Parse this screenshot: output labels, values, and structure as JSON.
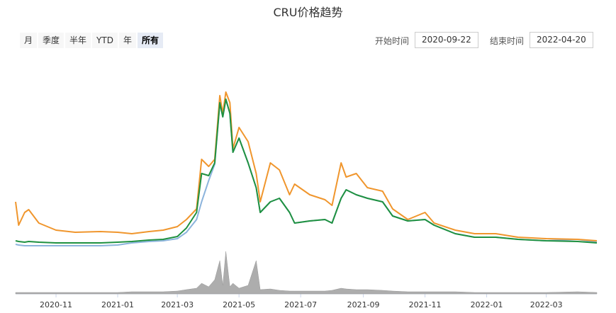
{
  "chart_data": {
    "type": "line",
    "title": "CRU价格趋势",
    "range_buttons": [
      "月",
      "季度",
      "半年",
      "YTD",
      "年",
      "所有"
    ],
    "selected_button": 5,
    "start_label": "开始时间",
    "start_date": "2020-09-22",
    "end_label": "结束时间",
    "end_date": "2022-04-20",
    "x": [
      "2020-09-22",
      "2020-09-25",
      "2020-10-01",
      "2020-10-05",
      "2020-10-15",
      "2020-11-01",
      "2020-11-20",
      "2020-12-15",
      "2021-01-01",
      "2021-01-15",
      "2021-02-01",
      "2021-02-15",
      "2021-03-01",
      "2021-03-10",
      "2021-03-20",
      "2021-03-25",
      "2021-04-01",
      "2021-04-07",
      "2021-04-12",
      "2021-04-15",
      "2021-04-18",
      "2021-04-22",
      "2021-04-25",
      "2021-05-01",
      "2021-05-10",
      "2021-05-18",
      "2021-05-22",
      "2021-06-01",
      "2021-06-10",
      "2021-06-20",
      "2021-06-25",
      "2021-07-10",
      "2021-07-25",
      "2021-08-01",
      "2021-08-10",
      "2021-08-15",
      "2021-08-25",
      "2021-09-05",
      "2021-09-20",
      "2021-09-30",
      "2021-10-15",
      "2021-11-01",
      "2021-11-10",
      "2021-12-01",
      "2021-12-20",
      "2022-01-10",
      "2022-02-01",
      "2022-03-01",
      "2022-04-01",
      "2022-04-20"
    ],
    "series": [
      {
        "color": "#8cb4dc",
        "values": [
          5,
          4,
          3,
          3,
          3,
          3,
          3,
          3,
          4,
          7,
          9,
          10,
          13,
          22,
          40,
          65,
          95,
          118,
          204,
          185,
          209,
          190,
          135,
          155,
          120,
          85,
          50,
          65,
          70,
          50,
          35,
          38,
          40,
          35,
          70,
          82,
          75,
          70,
          65,
          45,
          38,
          40,
          32,
          20,
          15,
          15,
          12,
          10,
          12,
          8
        ]
      },
      {
        "color": "#f0962d",
        "values": [
          65,
          32,
          50,
          54,
          35,
          25,
          22,
          23,
          22,
          20,
          23,
          25,
          30,
          40,
          55,
          125,
          115,
          125,
          215,
          190,
          220,
          205,
          140,
          170,
          150,
          105,
          65,
          120,
          110,
          75,
          90,
          75,
          68,
          60,
          120,
          100,
          105,
          85,
          80,
          55,
          40,
          50,
          35,
          25,
          20,
          20,
          15,
          13,
          12,
          10
        ]
      },
      {
        "color": "#1f9140",
        "values": [
          10,
          9,
          8,
          9,
          8,
          7,
          7,
          7,
          8,
          9,
          11,
          12,
          16,
          28,
          50,
          105,
          102,
          120,
          205,
          185,
          210,
          190,
          135,
          155,
          120,
          85,
          50,
          65,
          70,
          50,
          35,
          38,
          40,
          35,
          70,
          82,
          75,
          70,
          65,
          45,
          38,
          40,
          32,
          20,
          15,
          15,
          12,
          10,
          9,
          7
        ]
      },
      {
        "color": "#999999",
        "axis": "y2",
        "values": [
          2,
          2,
          2,
          2,
          2,
          2,
          2,
          2,
          2,
          3,
          3,
          3,
          4,
          6,
          8,
          15,
          10,
          20,
          47,
          12,
          60,
          10,
          15,
          8,
          12,
          47,
          6,
          7,
          5,
          4,
          4,
          4,
          4,
          5,
          8,
          7,
          6,
          6,
          5,
          4,
          3,
          3,
          3,
          3,
          2,
          2,
          2,
          2,
          3,
          2
        ]
      }
    ],
    "ylim": [
      0,
      250
    ],
    "y2lim": [
      0,
      60
    ],
    "xticks": [
      {
        "value": "2020-11-01",
        "label": "2020-11"
      },
      {
        "value": "2021-01-01",
        "label": "2021-01"
      },
      {
        "value": "2021-03-01",
        "label": "2021-03"
      },
      {
        "value": "2021-05-01",
        "label": "2021-05"
      },
      {
        "value": "2021-07-01",
        "label": "2021-07"
      },
      {
        "value": "2021-09-01",
        "label": "2021-09"
      },
      {
        "value": "2021-11-01",
        "label": "2021-11"
      },
      {
        "value": "2022-01-01",
        "label": "2022-01"
      },
      {
        "value": "2022-03-01",
        "label": "2022-03"
      }
    ]
  }
}
